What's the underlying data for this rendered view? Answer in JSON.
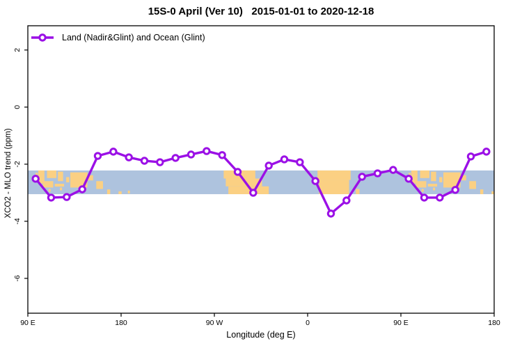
{
  "title": "15S-0 April (Ver 10)   2015-01-01 to 2020-12-18",
  "legend": {
    "label": "Land (Nadir&Glint) and Ocean (Glint)"
  },
  "chart_data": {
    "type": "line",
    "title": "15S-0 April (Ver 10)   2015-01-01 to 2020-12-18",
    "xlabel": "Longitude (deg E)",
    "ylabel": "XCO2 - MLO trend (ppm)",
    "xlim": [
      90,
      540
    ],
    "ylim": [
      -7.22,
      2.85
    ],
    "grid": false,
    "legend_position": "top-left-inside",
    "x_ticks": [
      {
        "lon": 90,
        "label": "90 E"
      },
      {
        "lon": 180,
        "label": "180"
      },
      {
        "lon": 270,
        "label": "90 W"
      },
      {
        "lon": 360,
        "label": "0"
      },
      {
        "lon": 450,
        "label": "90 E"
      },
      {
        "lon": 540,
        "label": "180"
      }
    ],
    "y_ticks": [
      {
        "value": 2,
        "label": "2"
      },
      {
        "value": 0,
        "label": "0"
      },
      {
        "value": -2,
        "label": "-2"
      },
      {
        "value": -4,
        "label": "-4"
      },
      {
        "value": -6,
        "label": "-6"
      }
    ],
    "series": [
      {
        "name": "Land (Nadir&Glint) and Ocean (Glint)",
        "marker": "open-circle",
        "x": [
          97.5,
          112.5,
          127.5,
          142.5,
          157.5,
          172.5,
          187.5,
          202.5,
          217.5,
          232.5,
          247.5,
          262.5,
          277.5,
          292.5,
          307.5,
          322.5,
          337.5,
          352.5,
          367.5,
          382.5,
          397.5,
          412.5,
          427.5,
          442.5,
          457.5,
          472.5,
          487.5,
          502.5,
          517.5,
          532.5
        ],
        "y": [
          -2.51,
          -3.17,
          -3.15,
          -2.88,
          -1.71,
          -1.56,
          -1.76,
          -1.88,
          -1.93,
          -1.78,
          -1.66,
          -1.54,
          -1.68,
          -2.27,
          -3.0,
          -2.05,
          -1.83,
          -1.93,
          -2.59,
          -3.73,
          -3.27,
          -2.44,
          -2.32,
          -2.2,
          -2.51,
          -3.17,
          -3.17,
          -2.9,
          -1.73,
          -1.56
        ]
      }
    ],
    "map_band": {
      "description": "latitude-strip world map 15S-0 drawn as background band",
      "top_value": -2.22,
      "bottom_value": -3.05,
      "land_patches_format": "[lon_start, lon_end, frac_top, frac_bottom]",
      "land_patches": [
        [
          97.5,
          99.5,
          0.1,
          0.3
        ],
        [
          100,
          106,
          0.0,
          0.55
        ],
        [
          104.5,
          114.5,
          0.45,
          0.72
        ],
        [
          108.5,
          117.5,
          0.0,
          0.32
        ],
        [
          110,
          112,
          0.78,
          0.9
        ],
        [
          119,
          124,
          0.05,
          0.45
        ],
        [
          116,
          125,
          0.56,
          0.68
        ],
        [
          121,
          123,
          0.72,
          0.84
        ],
        [
          127,
          130,
          0.28,
          0.5
        ],
        [
          131,
          147.5,
          0.08,
          0.72
        ],
        [
          147,
          153,
          0.2,
          0.42
        ],
        [
          156,
          162.5,
          0.45,
          0.78
        ],
        [
          166.5,
          169.5,
          0.8,
          1.0
        ],
        [
          177.5,
          180.5,
          0.88,
          1.0
        ],
        [
          186.5,
          188.5,
          0.85,
          0.97
        ],
        [
          279,
          309.5,
          0.0,
          0.34
        ],
        [
          281,
          316,
          0.34,
          0.67
        ],
        [
          283.5,
          322.5,
          0.67,
          1.0
        ],
        [
          369.5,
          401.5,
          0.0,
          0.4
        ],
        [
          371,
          400,
          0.4,
          1.0
        ],
        [
          406.5,
          410,
          0.78,
          1.0
        ],
        [
          457.5,
          459.5,
          0.1,
          0.3
        ],
        [
          460,
          466,
          0.0,
          0.55
        ],
        [
          464.5,
          474.5,
          0.45,
          0.72
        ],
        [
          468.5,
          477.5,
          0.0,
          0.32
        ],
        [
          470,
          472,
          0.78,
          0.9
        ],
        [
          479,
          484,
          0.05,
          0.45
        ],
        [
          476,
          485,
          0.56,
          0.68
        ],
        [
          481,
          483,
          0.72,
          0.84
        ],
        [
          487,
          490,
          0.28,
          0.5
        ],
        [
          491,
          507.5,
          0.08,
          0.72
        ],
        [
          507,
          513,
          0.2,
          0.42
        ],
        [
          516,
          522.5,
          0.45,
          0.78
        ],
        [
          526.5,
          529.5,
          0.8,
          1.0
        ],
        [
          537.5,
          540,
          0.88,
          1.0
        ]
      ]
    },
    "colors": {
      "line": "#9B10E6",
      "marker_fill": "#FFFFFF",
      "ocean_band": "#AEC3DE",
      "land_patch": "#FBD083",
      "axis": "#000000"
    }
  }
}
